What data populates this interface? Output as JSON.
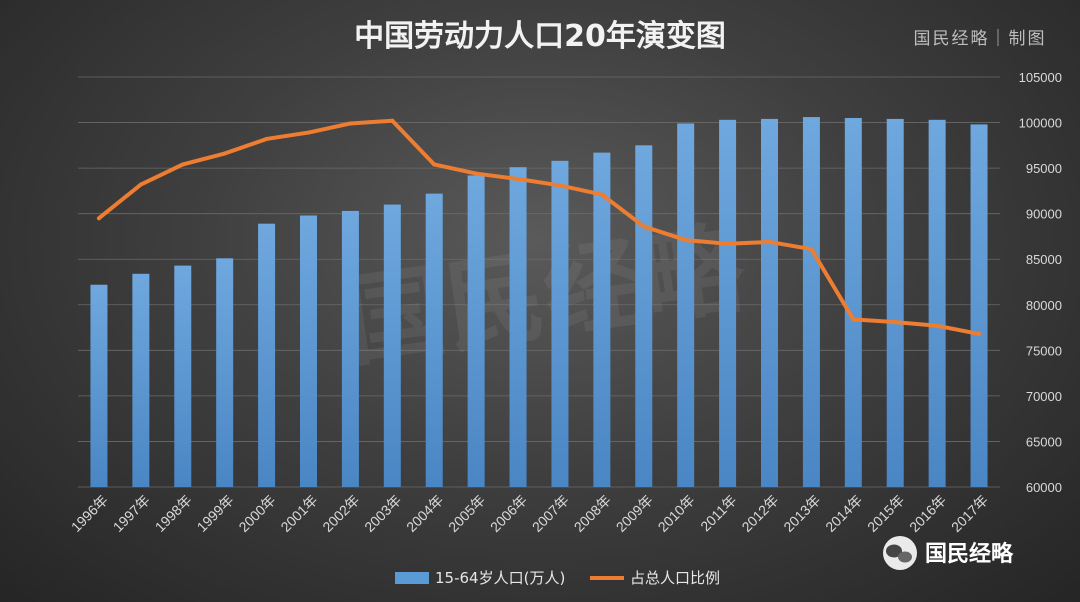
{
  "chart_data": {
    "type": "bar+line",
    "title": "中国劳动力人口20年演变图",
    "brand_label": "国民经略｜制图",
    "watermark": "国民经略",
    "badge_label": "国民经略",
    "categories": [
      "1996年",
      "1997年",
      "1998年",
      "1999年",
      "2000年",
      "2001年",
      "2002年",
      "2003年",
      "2004年",
      "2005年",
      "2006年",
      "2007年",
      "2008年",
      "2009年",
      "2010年",
      "2011年",
      "2012年",
      "2013年",
      "2014年",
      "2015年",
      "2016年",
      "2017年"
    ],
    "series": [
      {
        "name": "15-64岁人口(万人)",
        "type": "bar",
        "axis": "right",
        "color": "#5b9bd5",
        "values": [
          82200,
          83400,
          84300,
          85100,
          88900,
          89800,
          90300,
          91000,
          92200,
          94200,
          95100,
          95800,
          96700,
          97500,
          99900,
          100300,
          100400,
          100600,
          100500,
          100400,
          100300,
          99800
        ]
      },
      {
        "name": "占总人口比例",
        "type": "line",
        "axis": "secondary",
        "color": "#ed7d31",
        "values": [
          89500,
          93200,
          95400,
          96600,
          98200,
          98900,
          99900,
          100200,
          95400,
          94400,
          93800,
          93100,
          92100,
          88600,
          87100,
          86700,
          86900,
          86100,
          78400,
          78100,
          77700,
          76800
        ]
      }
    ],
    "y_axis": {
      "position": "right",
      "ylim": [
        60000,
        105000
      ],
      "ticks": [
        "60000",
        "65000",
        "70000",
        "75000",
        "80000",
        "85000",
        "90000",
        "95000",
        "100000",
        "105000"
      ]
    },
    "grid": true,
    "legend_position": "bottom"
  }
}
